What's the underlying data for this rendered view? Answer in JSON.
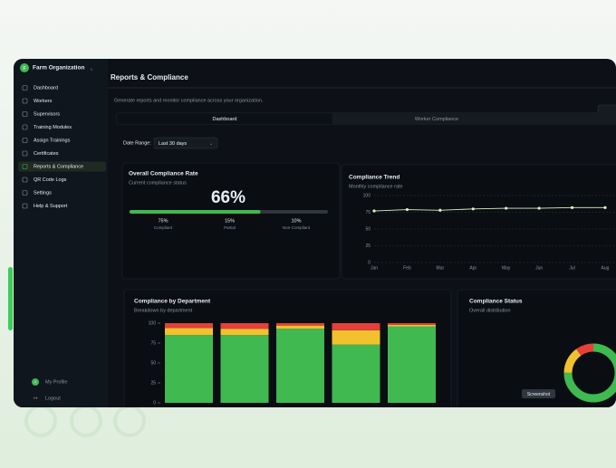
{
  "sidebar": {
    "logo_initial": "F",
    "org_name": "Farm Organization",
    "nav": [
      "Dashboard",
      "Workers",
      "Supervisors",
      "Training Modules",
      "Assign Trainings",
      "Certificates",
      "Reports & Compliance",
      "QR Code Logs",
      "Settings",
      "Help & Support"
    ],
    "profile_initial": "A",
    "profile": "My Profile",
    "logout": "Logout"
  },
  "header": {
    "title": "Reports & Compliance",
    "subtitle": "Generate reports and monitor compliance across your organization."
  },
  "tabs": [
    "Dashboard",
    "Worker Compliance"
  ],
  "filter": {
    "label": "Date Range:",
    "value": "Last 30 days"
  },
  "overall": {
    "title": "Overall Compliance Rate",
    "subtitle": "Current compliance status",
    "value": 66,
    "value_label": "66%",
    "stats": [
      {
        "value": 75,
        "value_label": "75%",
        "label": "Compliant",
        "color": "#3fb950"
      },
      {
        "value": 15,
        "value_label": "15%",
        "label": "Partial",
        "color": "#e3b341"
      },
      {
        "value": 10,
        "value_label": "10%",
        "label": "Non-Compliant",
        "color": "#f85149"
      }
    ]
  },
  "trend": {
    "title": "Compliance Trend",
    "subtitle": "Monthly compliance rate",
    "chart_data": {
      "type": "line",
      "categories": [
        "Jan",
        "Feb",
        "Mar",
        "Apr",
        "May",
        "Jun",
        "Jul",
        "Aug"
      ],
      "values": [
        77,
        79,
        78,
        80,
        81,
        81,
        82,
        82
      ],
      "color": "#d9f2c4",
      "ylim": [
        0,
        100
      ],
      "yticks": [
        0,
        25,
        50,
        75,
        100
      ],
      "grid": true
    }
  },
  "department": {
    "title": "Compliance by Department",
    "subtitle": "Breakdown by department",
    "chart_data": {
      "type": "bar",
      "stacked": true,
      "categories": [
        null,
        null,
        null,
        null,
        null
      ],
      "series": [
        {
          "color": "#3fb950",
          "values": [
            85,
            85,
            93,
            73,
            96
          ]
        },
        {
          "color": "#f2c12e",
          "values": [
            9,
            8,
            4,
            18,
            2
          ]
        },
        {
          "color": "#e5403a",
          "values": [
            6,
            7,
            3,
            9,
            2
          ]
        }
      ],
      "ylim": [
        0,
        100
      ],
      "yticks": [
        0,
        25,
        50,
        75,
        100
      ]
    }
  },
  "status": {
    "title": "Compliance Status",
    "subtitle": "Overall distribution",
    "chart_data": {
      "type": "pie",
      "donut": true,
      "values": [
        75,
        15,
        10
      ],
      "colors": [
        "#3fb950",
        "#f2c12e",
        "#e5403a"
      ]
    }
  },
  "tooltip": "Screenshot"
}
